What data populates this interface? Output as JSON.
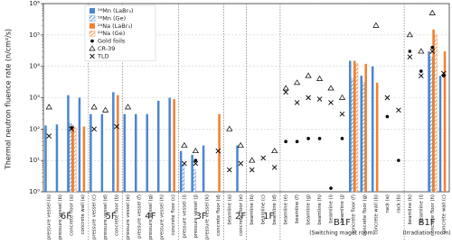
{
  "chart_data": {
    "type": "mixed",
    "y_label": "Thermal neutron fluence rate (n/cm²/s)",
    "log_y": true,
    "grid": true,
    "legend": "upper-left",
    "ylim": [
      1,
      1000000
    ],
    "yticks": [
      {
        "value": 1,
        "label": "10⁰"
      },
      {
        "value": 10,
        "label": "10¹"
      },
      {
        "value": 100,
        "label": "10²"
      },
      {
        "value": 1000,
        "label": "10³"
      },
      {
        "value": 10000,
        "label": "10⁴"
      },
      {
        "value": 100000,
        "label": "10⁵"
      },
      {
        "value": 1000000,
        "label": "10⁶"
      }
    ],
    "groups": [
      {
        "name": "6F",
        "categories": [
          "pressure vessel (a)",
          "pressure vessel (b)",
          "concrete floor (a)",
          "concrete wall (a)"
        ]
      },
      {
        "name": "5F",
        "categories": [
          "pressure vessel (c)",
          "pressure vessel (d)",
          "concrete floor (b)"
        ]
      },
      {
        "name": "4F",
        "categories": [
          "pressure vessel (e)",
          "pressure vessel (f)",
          "pressure vessel (g)",
          "pressure vessel (h)",
          "concrete floor (c)"
        ]
      },
      {
        "name": "3F",
        "categories": [
          "pressure vessel (i)",
          "pressure vessel (j)",
          "pressure vessel (k)",
          "concrete floor (d)"
        ]
      },
      {
        "name": "2F",
        "categories": [
          "beamline (a)",
          "concrete floor (e)"
        ]
      },
      {
        "name": "1F",
        "categories": [
          "beamline (b)",
          "beamline (c)",
          "beamline (d)"
        ]
      },
      {
        "name": "B1F",
        "note": "(Switching maget room)",
        "categories": [
          "beamline (e)",
          "beamline (f)",
          "beamline (g)",
          "beamline (h)",
          "beamline (i)",
          "beamline (j)",
          "concrete floor (f)",
          "concrete floor (g)",
          "concrete wall (b)",
          "rack (a)",
          "rack (b)"
        ]
      },
      {
        "name": "B1F",
        "note": "(Irradiation room)",
        "categories": [
          "beamline (k)",
          "beamline (l)",
          "concrete floor (h)",
          "concrete wall (c)"
        ]
      }
    ],
    "series": [
      {
        "name": "⁵⁶Mn (LaBr₃)",
        "marker": "bar",
        "hatch": false,
        "color": "#4a86d0",
        "values": [
          130,
          140,
          1200,
          1000,
          300,
          300,
          1500,
          300,
          300,
          300,
          800,
          1000,
          20,
          15,
          30,
          null,
          null,
          30,
          null,
          null,
          null,
          null,
          null,
          null,
          null,
          null,
          null,
          15000,
          5000,
          10000,
          null,
          null,
          null,
          null,
          30000,
          5000
        ]
      },
      {
        "name": "⁵⁶Mn (Ge)",
        "marker": "bar",
        "hatch": true,
        "color": "#4a86d0",
        "values": [
          null,
          null,
          150,
          null,
          null,
          null,
          null,
          null,
          null,
          null,
          null,
          null,
          7,
          5,
          null,
          null,
          null,
          null,
          null,
          null,
          null,
          null,
          null,
          null,
          null,
          null,
          null,
          4000,
          3000,
          null,
          null,
          null,
          null,
          null,
          20000,
          null
        ]
      },
      {
        "name": "²⁴Na (LaBr₃)",
        "marker": "bar",
        "hatch": false,
        "color": "#f08030",
        "values": [
          null,
          null,
          130,
          120,
          null,
          null,
          1200,
          null,
          null,
          null,
          null,
          900,
          null,
          null,
          null,
          300,
          null,
          null,
          null,
          null,
          null,
          null,
          null,
          null,
          null,
          null,
          null,
          15000,
          12000,
          3000,
          null,
          null,
          null,
          null,
          150000,
          30000
        ]
      },
      {
        "name": "²⁴Na (Ge)",
        "marker": "bar",
        "hatch": true,
        "color": "#f08030",
        "values": [
          null,
          null,
          110,
          null,
          null,
          null,
          null,
          null,
          null,
          null,
          null,
          null,
          null,
          null,
          null,
          null,
          null,
          null,
          null,
          null,
          null,
          null,
          null,
          null,
          null,
          null,
          null,
          12000,
          null,
          null,
          null,
          null,
          null,
          null,
          100000,
          null
        ]
      },
      {
        "name": "Gold foils",
        "marker": "circle",
        "color": "#000000",
        "values": [
          null,
          null,
          110,
          null,
          null,
          null,
          null,
          null,
          null,
          null,
          null,
          null,
          null,
          10,
          null,
          null,
          null,
          null,
          null,
          null,
          null,
          40,
          40,
          50,
          50,
          1.3,
          50,
          null,
          null,
          null,
          250,
          10,
          30000,
          7000,
          40000,
          5000
        ]
      },
      {
        "name": "CR-39",
        "marker": "triangle",
        "color": "#000000",
        "values": [
          500,
          null,
          null,
          null,
          500,
          400,
          null,
          500,
          null,
          null,
          null,
          null,
          30,
          20,
          null,
          null,
          100,
          30,
          10,
          null,
          20,
          2000,
          3000,
          5000,
          4000,
          2000,
          1000,
          null,
          null,
          200000,
          null,
          null,
          100000,
          30000,
          500000,
          null
        ]
      },
      {
        "name": "TLD",
        "marker": "x",
        "color": "#000000",
        "values": [
          60,
          null,
          100,
          null,
          100,
          null,
          120,
          null,
          null,
          null,
          null,
          null,
          8,
          8,
          null,
          20,
          5,
          8,
          5,
          12,
          6,
          1500,
          700,
          1000,
          900,
          700,
          300,
          null,
          null,
          null,
          1000,
          400,
          20000,
          5000,
          30000,
          6000
        ]
      }
    ]
  }
}
